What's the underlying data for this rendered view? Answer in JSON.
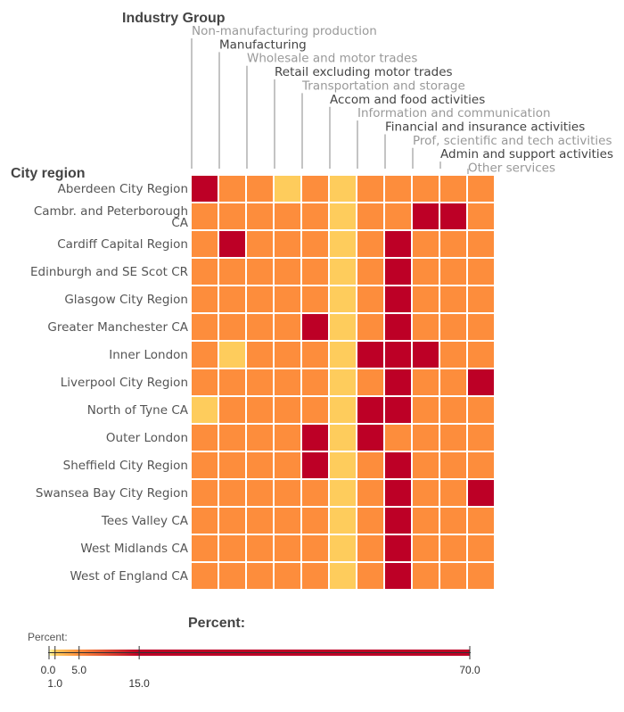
{
  "chart_data": {
    "type": "heatmap",
    "col_title": "Industry Group",
    "row_title": "City region",
    "columns": [
      "Non-manufacturing production",
      "Manufacturing",
      "Wholesale and motor trades",
      "Retail excluding motor trades",
      "Transportation and storage",
      "Accom and food activities",
      "Information and communication",
      "Financial and insurance activities",
      "Prof, scientific and tech activities",
      "Admin and support activities",
      "Other services"
    ],
    "column_label_colors": [
      "#999999",
      "#444444",
      "#999999",
      "#444444",
      "#999999",
      "#444444",
      "#999999",
      "#444444",
      "#999999",
      "#444444",
      "#999999"
    ],
    "rows": [
      [
        "Aberdeen City Region"
      ],
      [
        "Cambr. and Peterborough",
        "CA"
      ],
      [
        "Cardiff Capital Region"
      ],
      [
        "Edinburgh and SE Scot CR"
      ],
      [
        "Glasgow City Region"
      ],
      [
        "Greater Manchester CA"
      ],
      [
        "Inner London"
      ],
      [
        "Liverpool City Region"
      ],
      [
        "North of Tyne CA"
      ],
      [
        "Outer London"
      ],
      [
        "Sheffield City Region"
      ],
      [
        "Swansea Bay City Region"
      ],
      [
        "Tees Valley CA"
      ],
      [
        "West Midlands CA"
      ],
      [
        "West of England CA"
      ]
    ],
    "values": [
      [
        22,
        9,
        9,
        3,
        12,
        2,
        9,
        9,
        12,
        9,
        9
      ],
      [
        8,
        12,
        9,
        8,
        8,
        2,
        12,
        12,
        20,
        20,
        8
      ],
      [
        8,
        18,
        9,
        8,
        12,
        2,
        12,
        20,
        9,
        12,
        12
      ],
      [
        8,
        12,
        9,
        8,
        12,
        2,
        12,
        20,
        12,
        12,
        12
      ],
      [
        8,
        12,
        9,
        8,
        12,
        2,
        12,
        20,
        12,
        12,
        12
      ],
      [
        8,
        9,
        12,
        8,
        18,
        2,
        12,
        20,
        12,
        12,
        12
      ],
      [
        8,
        3,
        9,
        8,
        8,
        2,
        18,
        20,
        18,
        12,
        8
      ],
      [
        8,
        12,
        9,
        8,
        12,
        2,
        12,
        20,
        9,
        9,
        18
      ],
      [
        4,
        12,
        9,
        8,
        12,
        2,
        18,
        20,
        9,
        12,
        12
      ],
      [
        8,
        9,
        12,
        8,
        18,
        2,
        18,
        12,
        12,
        12,
        8
      ],
      [
        8,
        12,
        9,
        12,
        18,
        2,
        12,
        20,
        9,
        12,
        12
      ],
      [
        8,
        12,
        9,
        8,
        12,
        2,
        9,
        20,
        12,
        12,
        18
      ],
      [
        12,
        9,
        12,
        8,
        12,
        2,
        9,
        20,
        12,
        12,
        12
      ],
      [
        8,
        12,
        12,
        8,
        12,
        2,
        12,
        20,
        12,
        12,
        12
      ],
      [
        8,
        12,
        12,
        8,
        12,
        2,
        12,
        20,
        12,
        12,
        12
      ]
    ],
    "legend": {
      "title": "Percent:",
      "label": "Percent:",
      "stops": [
        0.0,
        1.0,
        5.0,
        15.0,
        70.0
      ],
      "tick_labels": [
        "0.0",
        "1.0",
        "5.0",
        "15.0",
        "70.0"
      ],
      "colors": [
        "#ffffb2",
        "#fecc5c",
        "#fd8d3c",
        "#bd0026"
      ]
    },
    "grid": false
  }
}
